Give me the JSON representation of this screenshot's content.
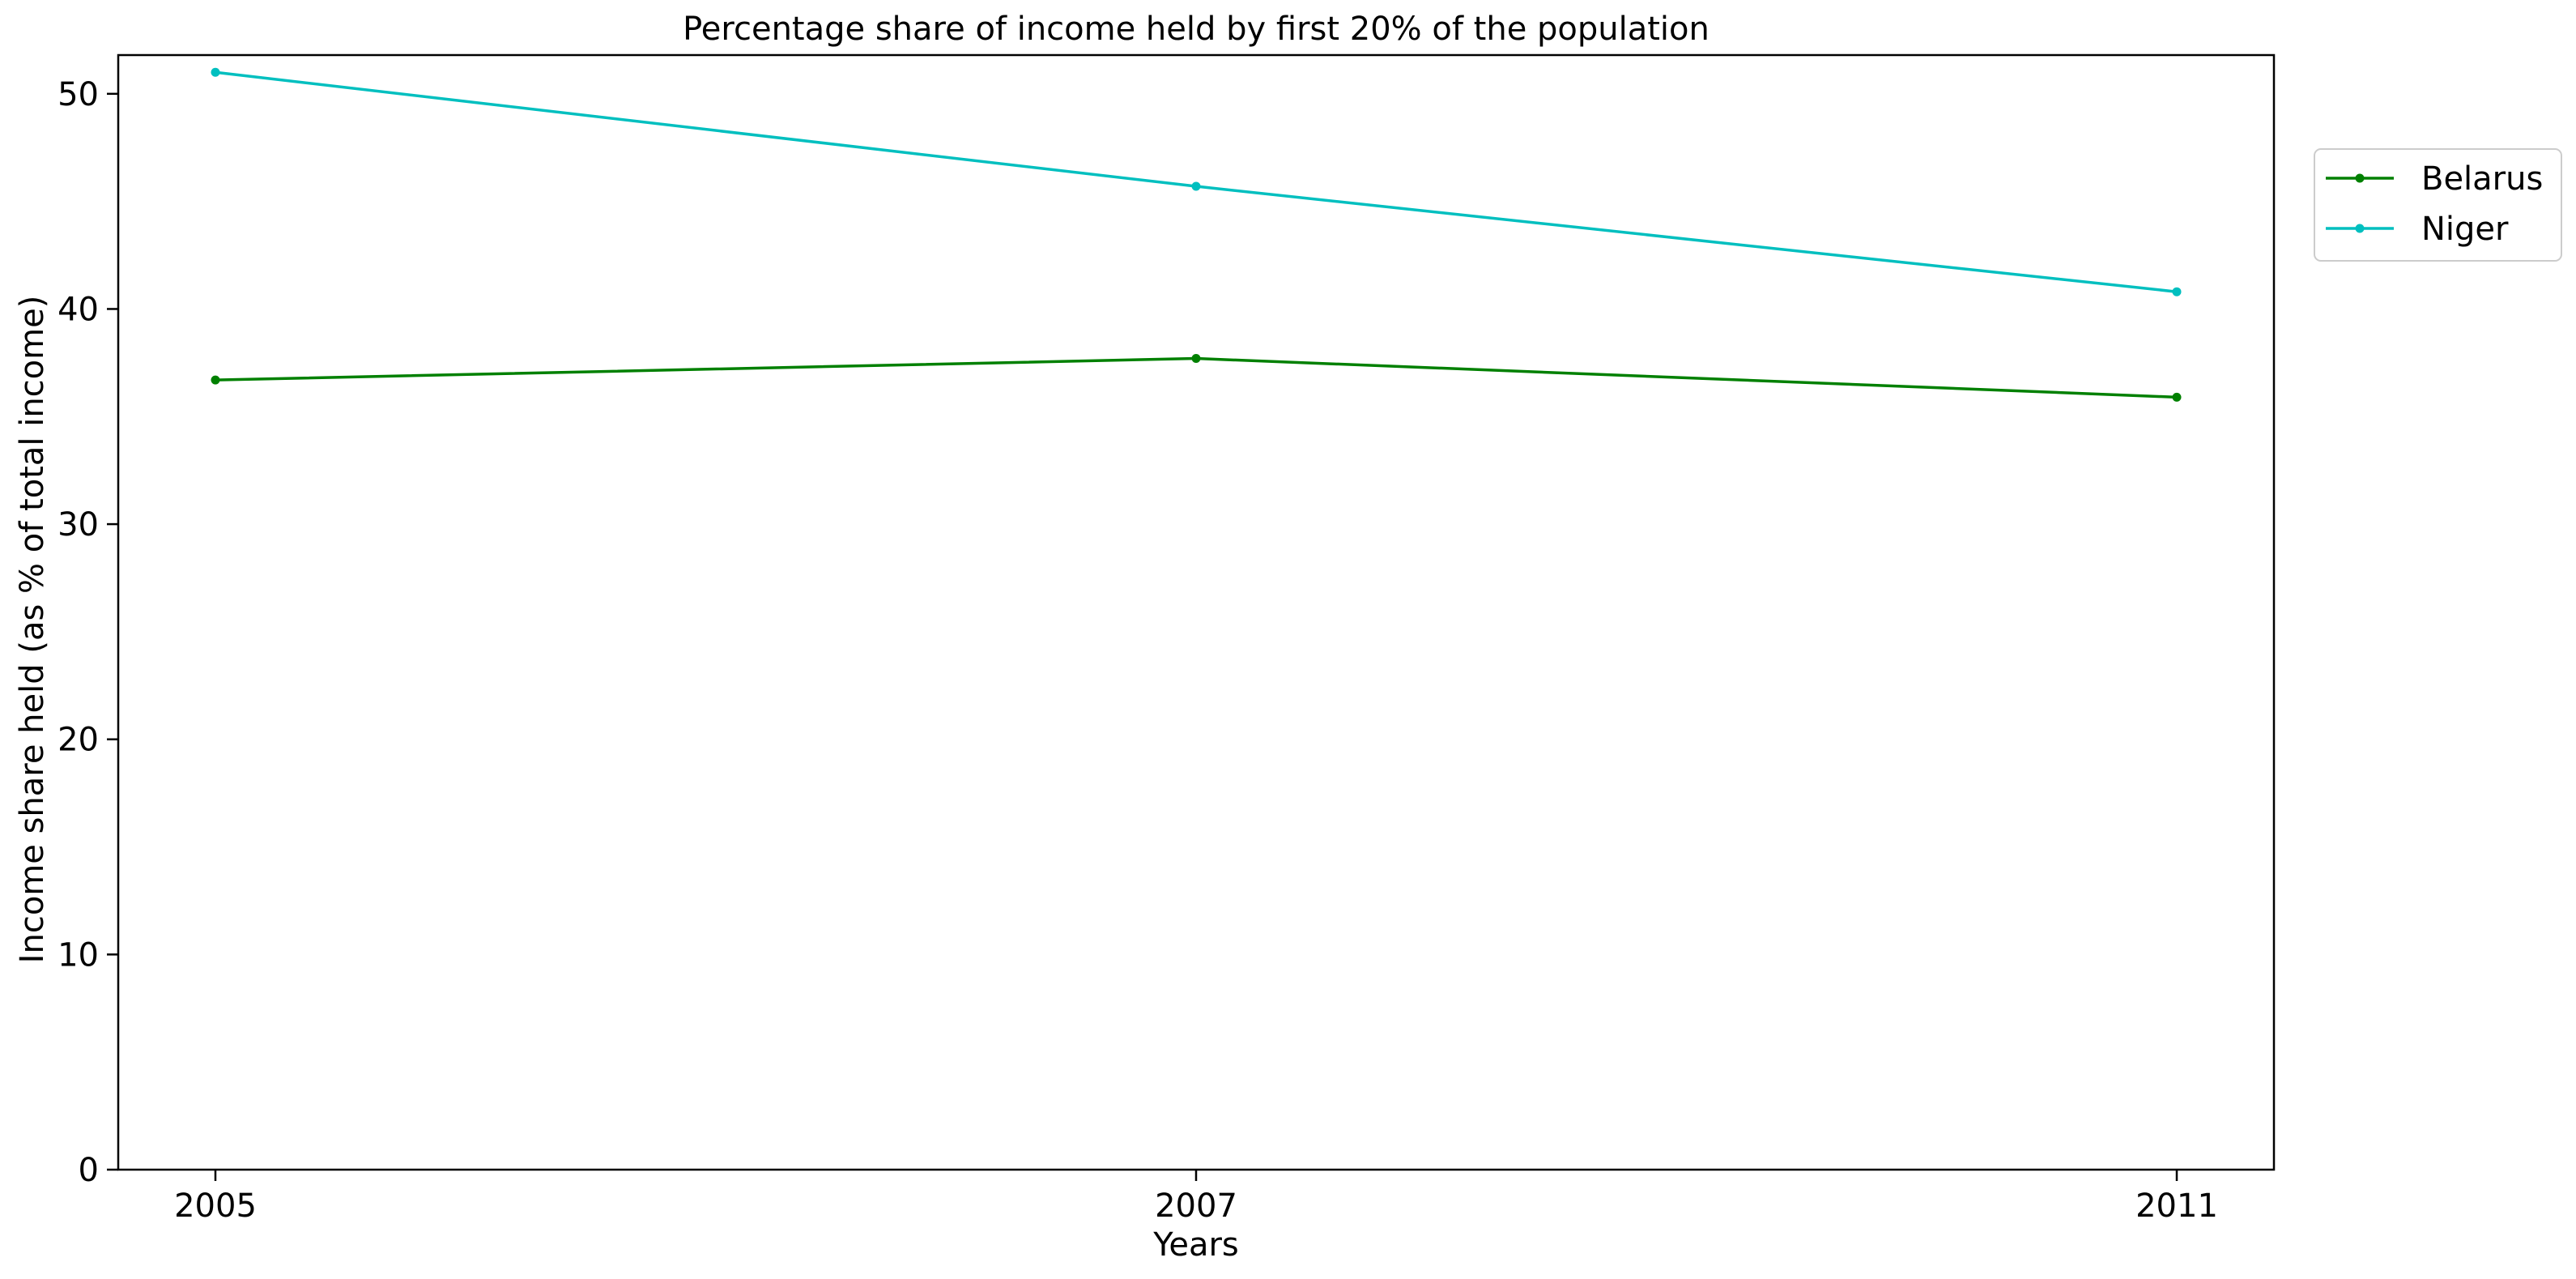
{
  "chart_data": {
    "type": "line",
    "title": "Percentage share of income held by first 20% of the population",
    "xlabel": "Years",
    "ylabel": "Income share held (as % of total income)",
    "categories": [
      "2005",
      "2007",
      "2011"
    ],
    "series": [
      {
        "name": "Belarus",
        "color": "#008000",
        "values": [
          36.7,
          37.7,
          35.9
        ]
      },
      {
        "name": "Niger",
        "color": "#00bfbf",
        "values": [
          51.0,
          45.7,
          40.8
        ]
      }
    ],
    "ylim": [
      0,
      51.8
    ],
    "yticks": [
      0,
      10,
      20,
      30,
      40,
      50
    ],
    "grid": false,
    "legend_position": "upper right, outside the plot area"
  }
}
